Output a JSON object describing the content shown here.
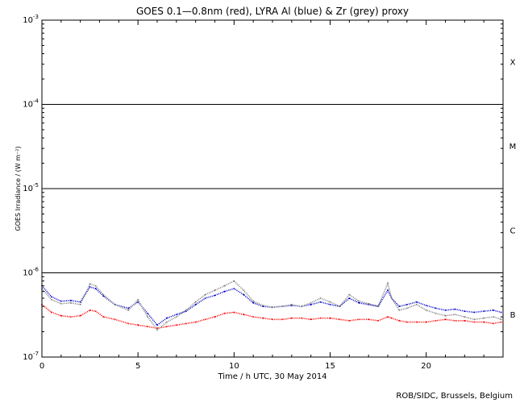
{
  "chart_data": {
    "type": "scatter",
    "title": "GOES 0.1—0.8nm (red), LYRA Al (blue) & Zr (grey) proxy",
    "xlabel": "Time / h UTC, 30 May 2014",
    "ylabel": "GOES Irradiance / (W m⁻²)",
    "xlim": [
      0,
      24
    ],
    "ylim": [
      1e-07,
      0.001
    ],
    "y_scale": "log",
    "x_ticks": [
      "0",
      "5",
      "10",
      "15",
      "20"
    ],
    "x_tick_values": [
      0,
      5,
      10,
      15,
      20
    ],
    "y_tick_values": [
      1e-07,
      1e-06,
      1e-05,
      0.0001,
      0.001
    ],
    "y_tick_base": "10",
    "y_tick_exponents": [
      "-7",
      "-6",
      "-5",
      "-4",
      "-3"
    ],
    "flare_class_lines": [
      1e-06,
      1e-05,
      0.0001
    ],
    "flare_classes": [
      {
        "label": "X",
        "y": 0.00032
      },
      {
        "label": "M",
        "y": 3.2e-05
      },
      {
        "label": "C",
        "y": 3.2e-06
      },
      {
        "label": "B",
        "y": 3.2e-07
      }
    ],
    "series": [
      {
        "color": "#ff0000",
        "x": [
          0,
          0.5,
          1,
          1.5,
          2,
          2.5,
          2.8,
          3.2,
          3.8,
          4.5,
          5,
          5.5,
          6,
          6.5,
          7,
          7.5,
          8,
          8.5,
          9,
          9.5,
          10,
          10.5,
          11,
          11.5,
          12,
          12.5,
          13,
          13.5,
          14,
          14.5,
          15,
          15.5,
          16,
          16.5,
          17,
          17.5,
          18,
          18.2,
          18.6,
          19,
          19.5,
          20,
          20.5,
          21,
          21.5,
          22,
          22.5,
          23,
          23.5,
          23.9
        ],
        "values": [
          4.2e-07,
          3.4e-07,
          3.1e-07,
          3e-07,
          3.1e-07,
          3.6e-07,
          3.5e-07,
          3e-07,
          2.8e-07,
          2.5e-07,
          2.4e-07,
          2.3e-07,
          2.2e-07,
          2.3e-07,
          2.4e-07,
          2.5e-07,
          2.6e-07,
          2.8e-07,
          3e-07,
          3.3e-07,
          3.4e-07,
          3.2e-07,
          3e-07,
          2.9e-07,
          2.8e-07,
          2.8e-07,
          2.9e-07,
          2.9e-07,
          2.8e-07,
          2.9e-07,
          2.9e-07,
          2.8e-07,
          2.7e-07,
          2.8e-07,
          2.8e-07,
          2.7e-07,
          3e-07,
          2.9e-07,
          2.7e-07,
          2.6e-07,
          2.6e-07,
          2.6e-07,
          2.7e-07,
          2.8e-07,
          2.7e-07,
          2.7e-07,
          2.6e-07,
          2.6e-07,
          2.5e-07,
          2.6e-07
        ]
      },
      {
        "color": "#0000cc",
        "x": [
          0,
          0.5,
          1,
          1.5,
          2,
          2.5,
          2.8,
          3.2,
          3.8,
          4.5,
          5,
          5.5,
          6,
          6.5,
          7,
          7.5,
          8,
          8.5,
          9,
          9.5,
          10,
          10.5,
          11,
          11.5,
          12,
          12.5,
          13,
          13.5,
          14,
          14.5,
          15,
          15.5,
          16,
          16.5,
          17,
          17.5,
          18,
          18.2,
          18.6,
          19,
          19.5,
          20,
          20.5,
          21,
          21.5,
          22,
          22.5,
          23,
          23.5,
          23.9
        ],
        "values": [
          7e-07,
          5.2e-07,
          4.6e-07,
          4.7e-07,
          4.5e-07,
          6.8e-07,
          6.5e-07,
          5.3e-07,
          4.2e-07,
          3.8e-07,
          4.5e-07,
          3.3e-07,
          2.4e-07,
          2.9e-07,
          3.2e-07,
          3.5e-07,
          4.2e-07,
          5e-07,
          5.4e-07,
          6e-07,
          6.5e-07,
          5.5e-07,
          4.4e-07,
          4e-07,
          3.9e-07,
          4e-07,
          4.1e-07,
          4e-07,
          4.2e-07,
          4.5e-07,
          4.2e-07,
          4e-07,
          5e-07,
          4.4e-07,
          4.2e-07,
          4e-07,
          6.2e-07,
          5e-07,
          4e-07,
          4.2e-07,
          4.5e-07,
          4.1e-07,
          3.8e-07,
          3.6e-07,
          3.7e-07,
          3.5e-07,
          3.4e-07,
          3.5e-07,
          3.6e-07,
          3.4e-07
        ]
      },
      {
        "color": "#808080",
        "x": [
          0,
          0.5,
          1,
          1.5,
          2,
          2.5,
          2.8,
          3.2,
          3.8,
          4.5,
          5,
          5.5,
          6,
          6.5,
          7,
          7.5,
          8,
          8.5,
          9,
          9.5,
          10,
          10.5,
          11,
          11.5,
          12,
          12.5,
          13,
          13.5,
          14,
          14.5,
          15,
          15.5,
          16,
          16.5,
          17,
          17.5,
          18,
          18.2,
          18.6,
          19,
          19.5,
          20,
          20.5,
          21,
          21.5,
          22,
          22.5,
          23,
          23.5,
          23.9
        ],
        "values": [
          6.5e-07,
          4.8e-07,
          4.3e-07,
          4.4e-07,
          4.2e-07,
          7.4e-07,
          7e-07,
          5.5e-07,
          4.2e-07,
          3.6e-07,
          4.8e-07,
          3e-07,
          2.1e-07,
          2.6e-07,
          3e-07,
          3.6e-07,
          4.5e-07,
          5.5e-07,
          6.2e-07,
          7e-07,
          8e-07,
          6.2e-07,
          4.6e-07,
          4.1e-07,
          3.9e-07,
          4e-07,
          4.2e-07,
          4e-07,
          4.4e-07,
          5e-07,
          4.5e-07,
          4e-07,
          5.5e-07,
          4.6e-07,
          4.3e-07,
          4e-07,
          7.5e-07,
          5e-07,
          3.6e-07,
          3.8e-07,
          4.2e-07,
          3.6e-07,
          3.3e-07,
          3.1e-07,
          3.2e-07,
          3e-07,
          2.8e-07,
          2.9e-07,
          3e-07,
          2.8e-07
        ]
      }
    ],
    "grid": false,
    "legend": "none",
    "credit": "ROB/SIDC, Brussels, Belgium"
  }
}
